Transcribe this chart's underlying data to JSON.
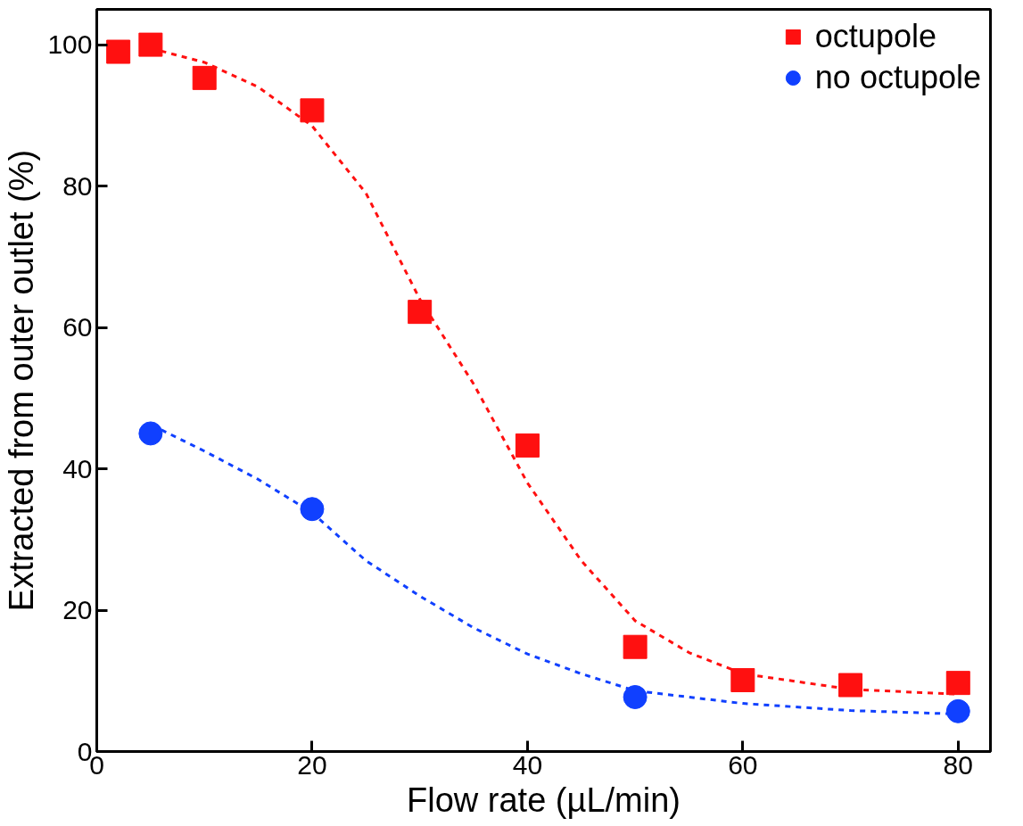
{
  "chart_data": {
    "type": "scatter",
    "xlabel": "Flow rate (µL/min)",
    "ylabel": "Extracted from outer outlet (%)",
    "xlim": [
      0,
      83
    ],
    "ylim": [
      0,
      105
    ],
    "xticks": [
      0,
      20,
      40,
      60,
      80
    ],
    "yticks": [
      0,
      20,
      40,
      60,
      80,
      100
    ],
    "grid": false,
    "legend": "top right",
    "series": [
      {
        "name": "octupole",
        "color": "#ff1010",
        "marker": "square",
        "x": [
          2,
          5,
          10,
          20,
          30,
          40,
          50,
          60,
          70,
          80
        ],
        "values": [
          99,
          100,
          95.3,
          90.7,
          62.2,
          43.3,
          14.8,
          10.1,
          9.4,
          9.7
        ]
      },
      {
        "name": "no octupole",
        "color": "#1040ff",
        "marker": "circle",
        "x": [
          5,
          20,
          50,
          80
        ],
        "values": [
          45,
          34.3,
          7.7,
          5.7
        ]
      },
      {
        "type": "line",
        "color": "#ff1010",
        "line_style": "dashed",
        "x": [
          5,
          10,
          15,
          20,
          25,
          30,
          35,
          40,
          45,
          50,
          55,
          60,
          70,
          80
        ],
        "values": [
          99.5,
          97.5,
          94,
          88.5,
          79,
          64,
          52,
          38,
          27,
          18.5,
          14,
          11,
          8.8,
          8.1
        ]
      },
      {
        "type": "line",
        "color": "#1040ff",
        "line_style": "dashed",
        "x": [
          6,
          10,
          15,
          20,
          25,
          30,
          35,
          40,
          45,
          50,
          60,
          70,
          80
        ],
        "values": [
          45.5,
          42.5,
          38.5,
          33.8,
          27,
          22,
          17.5,
          13.8,
          11,
          8.6,
          6.8,
          5.8,
          5.3
        ]
      }
    ]
  }
}
